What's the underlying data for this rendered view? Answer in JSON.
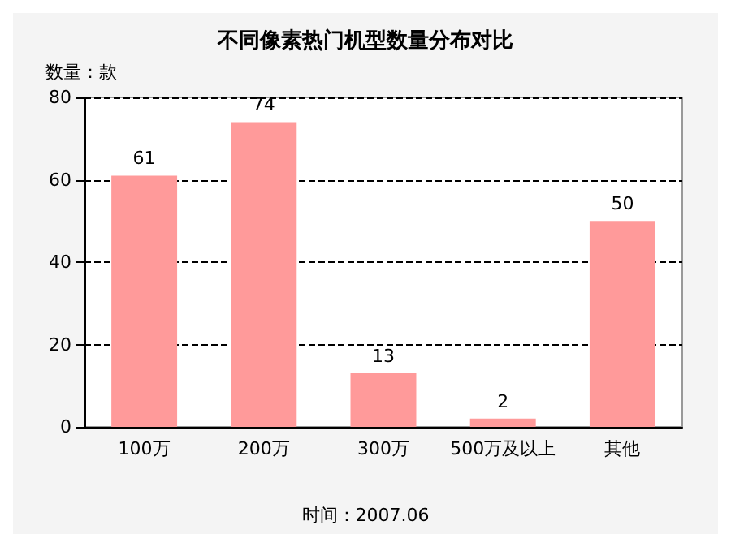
{
  "chart_data": {
    "type": "bar",
    "title": "不同像素热门机型数量分布对比",
    "ylabel": "数量：款",
    "categories": [
      "100万",
      "200万",
      "300万",
      "500万及以上",
      "其他"
    ],
    "values": [
      61,
      74,
      13,
      2,
      50
    ],
    "color": "#ff9a9a",
    "ylim": [
      0,
      80
    ],
    "yticks": [
      0,
      20,
      40,
      60,
      80
    ],
    "grid": "y",
    "data_labels": true,
    "annotations": [
      "时间：2007.06"
    ]
  }
}
